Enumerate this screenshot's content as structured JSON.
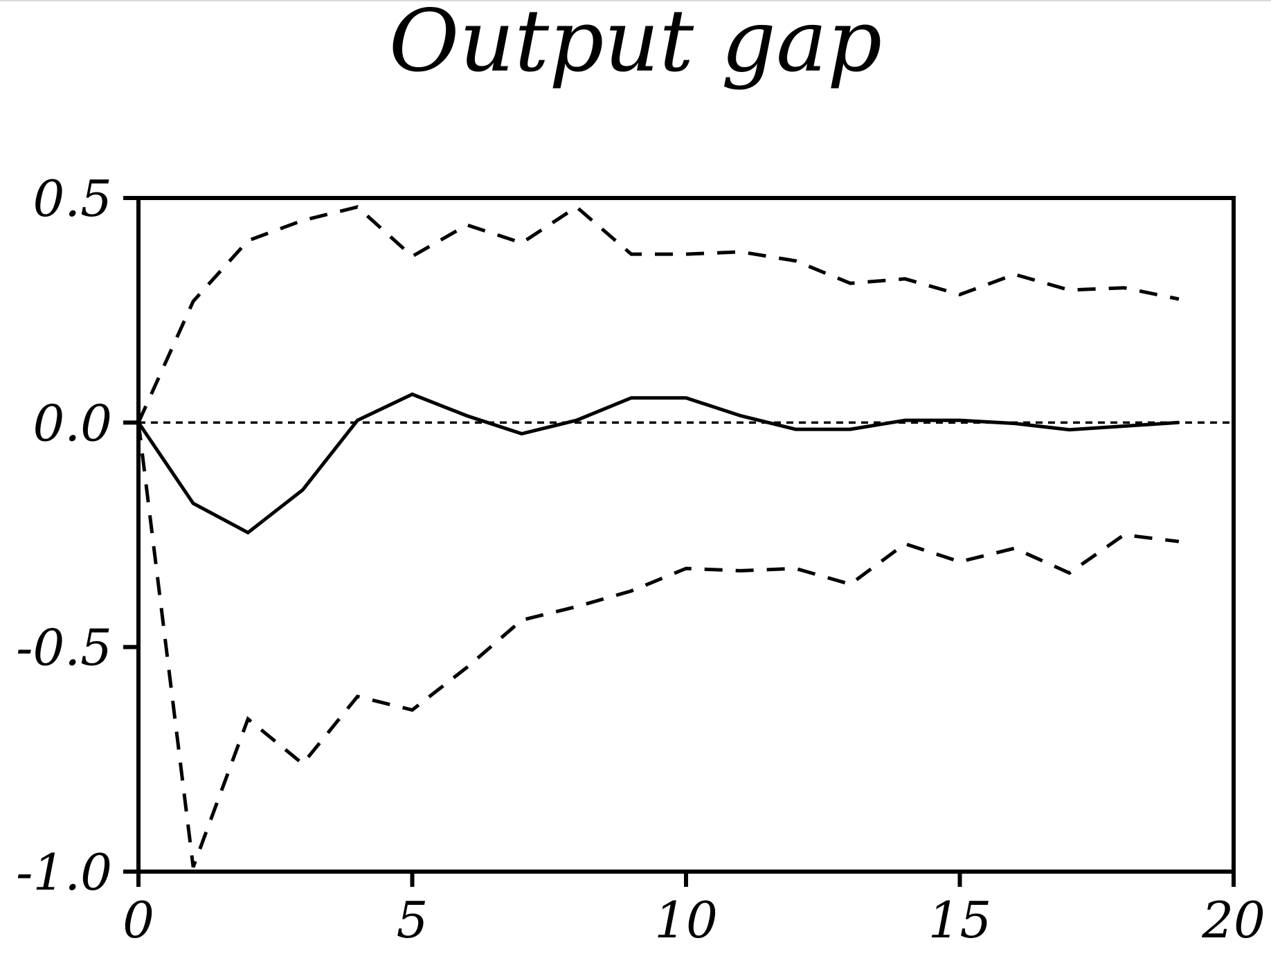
{
  "chart_data": {
    "type": "line",
    "title": "Output gap",
    "xlabel": "",
    "ylabel": "",
    "xlim": [
      0,
      20
    ],
    "ylim": [
      -1.0,
      0.5
    ],
    "x_ticks": [
      0,
      5,
      10,
      15,
      20
    ],
    "x_tick_labels": [
      "0",
      "5",
      "10",
      "15",
      "20"
    ],
    "y_ticks": [
      0.5,
      0.0,
      -0.5,
      -1.0
    ],
    "y_tick_labels": [
      "0.5",
      "0.0",
      "-0.5",
      "-1.0"
    ],
    "grid": false,
    "legend": "none",
    "reference_line": {
      "y": 0,
      "style": "dotted"
    },
    "x": [
      0,
      1,
      2,
      3,
      4,
      5,
      6,
      7,
      8,
      9,
      10,
      11,
      12,
      13,
      14,
      15,
      16,
      17,
      18,
      19
    ],
    "series": [
      {
        "style": "solid",
        "color": "#000000",
        "values": [
          0.0,
          -0.18,
          -0.245,
          -0.15,
          0.005,
          0.063,
          0.015,
          -0.025,
          0.005,
          0.055,
          0.055,
          0.015,
          -0.015,
          -0.015,
          0.005,
          0.005,
          -0.002,
          -0.016,
          -0.008,
          0.0
        ]
      },
      {
        "style": "dashed",
        "color": "#000000",
        "values": [
          0.0,
          0.27,
          0.405,
          0.45,
          0.48,
          0.37,
          0.44,
          0.4,
          0.48,
          0.375,
          0.375,
          0.38,
          0.36,
          0.31,
          0.32,
          0.285,
          0.33,
          0.295,
          0.3,
          0.275
        ]
      },
      {
        "style": "dashed",
        "color": "#000000",
        "values": [
          0.0,
          -0.99,
          -0.66,
          -0.76,
          -0.61,
          -0.64,
          -0.545,
          -0.44,
          -0.41,
          -0.375,
          -0.325,
          -0.33,
          -0.325,
          -0.36,
          -0.27,
          -0.31,
          -0.28,
          -0.335,
          -0.25,
          -0.265
        ]
      }
    ]
  }
}
